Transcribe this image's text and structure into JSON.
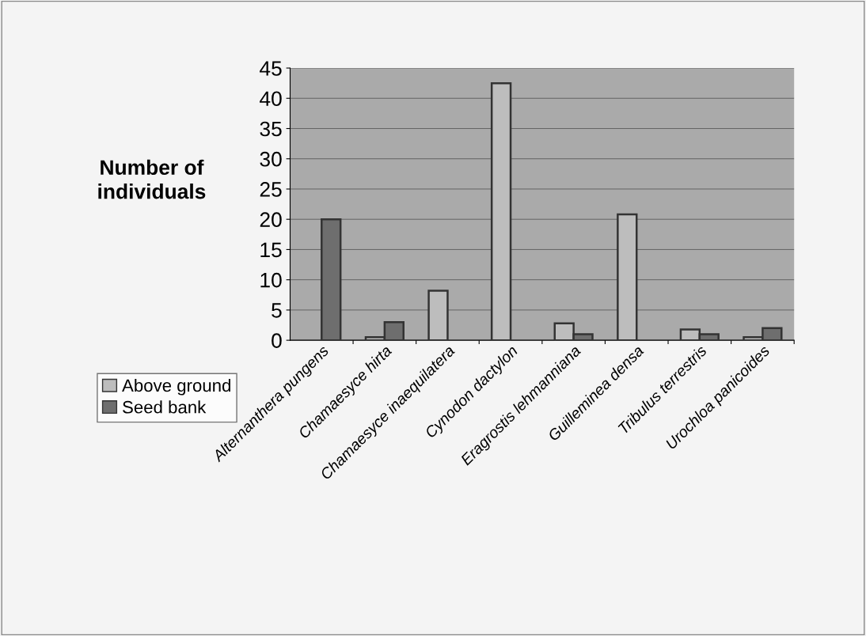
{
  "chart_data": {
    "type": "bar",
    "ylabel": "Number of\nindividuals",
    "categories": [
      "Alternanthera pungens",
      "Chamaesyce hirta",
      "Chamaesyce inaequilatera",
      "Cynodon dactylon",
      "Eragrostis lehmanniana",
      "Guilleminea densa",
      "Tribulus terrestris",
      "Urochloa panicoides"
    ],
    "series": [
      {
        "name": "Above ground",
        "color": "#bdbdbd",
        "values": [
          0,
          0.5,
          8.2,
          42.5,
          2.8,
          20.8,
          1.8,
          0.5
        ]
      },
      {
        "name": "Seed bank",
        "color": "#6e6e6e",
        "values": [
          20,
          3,
          0,
          0,
          1,
          0,
          1,
          2
        ]
      }
    ],
    "ylim": [
      0,
      45
    ],
    "yticks": [
      0,
      5,
      10,
      15,
      20,
      25,
      30,
      35,
      40,
      45
    ],
    "grid": "y",
    "legend": "bottom left"
  }
}
